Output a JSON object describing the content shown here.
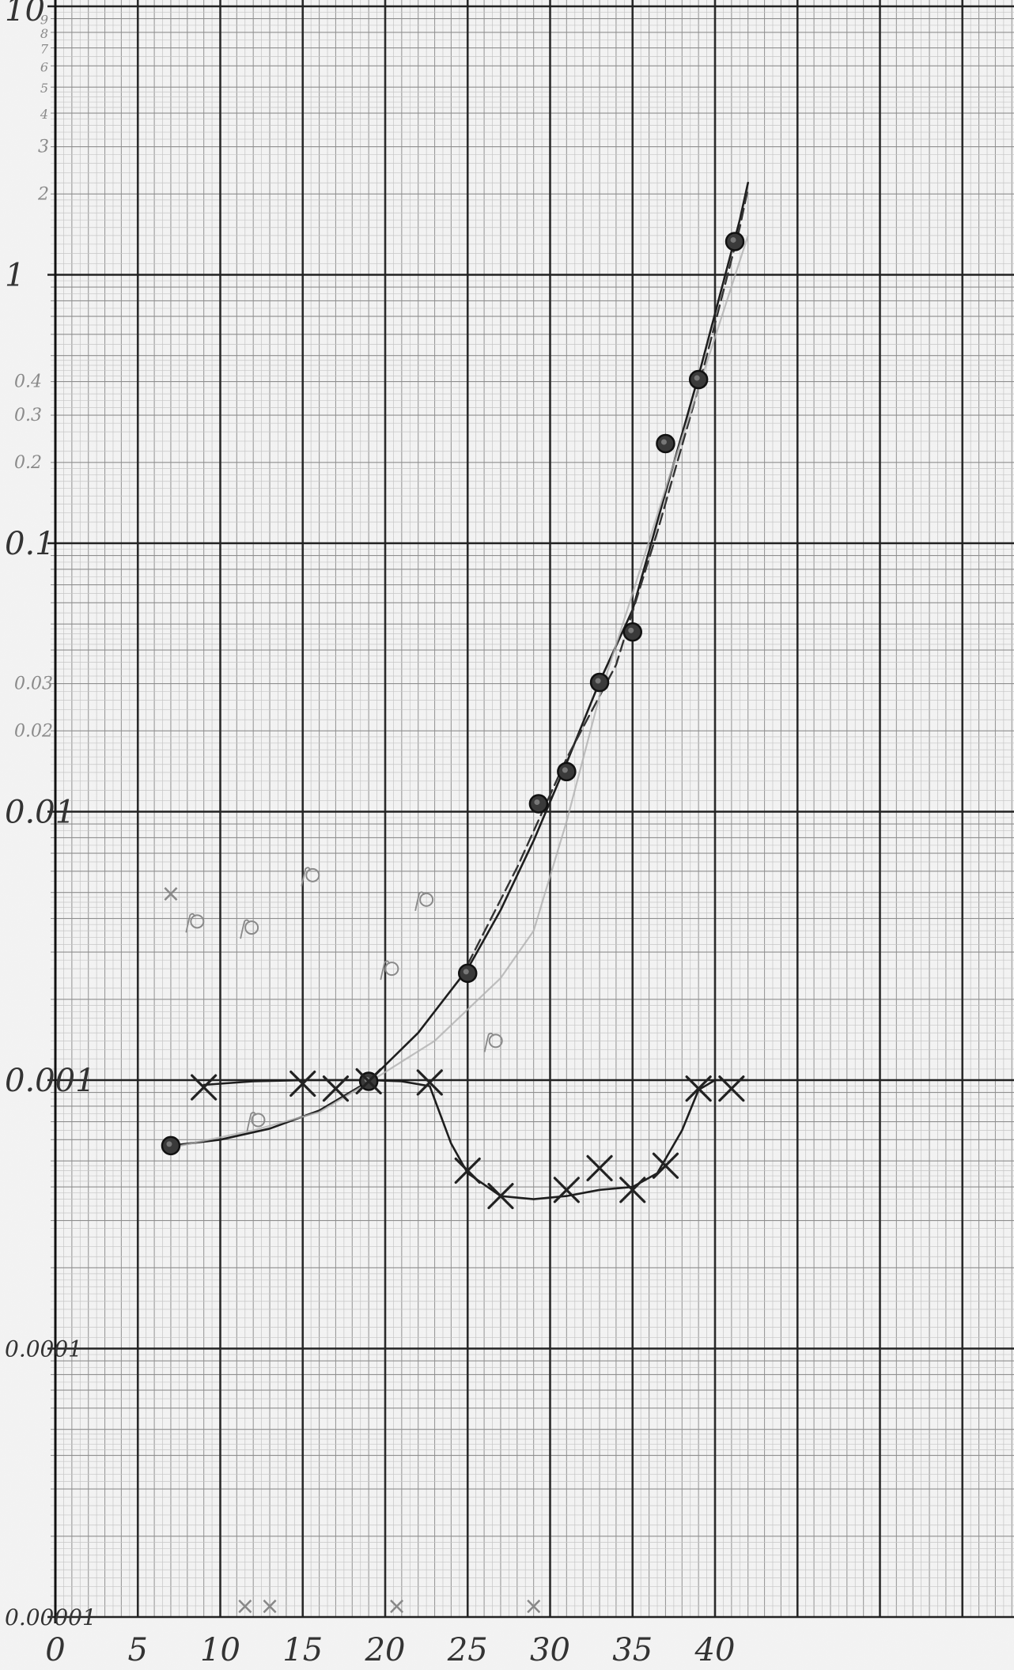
{
  "chart_data": {
    "type": "scatter",
    "title": "",
    "xlabel": "",
    "ylabel": "",
    "x_scale": "linear",
    "y_scale": "log",
    "xlim": [
      0,
      42
    ],
    "ylim": [
      1e-05,
      10
    ],
    "grid": true,
    "x_ticks": [
      {
        "v": 0,
        "label": "0"
      },
      {
        "v": 5,
        "label": "5"
      },
      {
        "v": 10,
        "label": "10"
      },
      {
        "v": 15,
        "label": "15"
      },
      {
        "v": 20,
        "label": "20"
      },
      {
        "v": 25,
        "label": "25"
      },
      {
        "v": 30,
        "label": "30"
      },
      {
        "v": 35,
        "label": "35"
      },
      {
        "v": 40,
        "label": "40"
      }
    ],
    "y_ticks": [
      {
        "v": 1e-05,
        "label": "0.00001"
      },
      {
        "v": 0.0001,
        "label": "0.0001"
      },
      {
        "v": 0.001,
        "label": "0.001"
      },
      {
        "v": 0.01,
        "label": "0.01"
      },
      {
        "v": 0.1,
        "label": "0.1"
      },
      {
        "v": 1,
        "label": "1"
      },
      {
        "v": 10,
        "label": "10"
      }
    ],
    "y_minor_labels": [
      {
        "v": 0.02,
        "label": "0.02"
      },
      {
        "v": 0.03,
        "label": "0.03"
      },
      {
        "v": 0.2,
        "label": "0.2"
      },
      {
        "v": 0.3,
        "label": "0.3"
      },
      {
        "v": 0.4,
        "label": "0.4"
      },
      {
        "v": 2,
        "label": "2"
      },
      {
        "v": 3,
        "label": "3"
      },
      {
        "v": 4,
        "label": "4"
      },
      {
        "v": 5,
        "label": "5"
      },
      {
        "v": 6,
        "label": "6"
      },
      {
        "v": 7,
        "label": "7"
      },
      {
        "v": 8,
        "label": "8"
      },
      {
        "v": 9,
        "label": "9"
      }
    ],
    "series": [
      {
        "marker": "dot",
        "color": "#222222",
        "points": [
          [
            7,
            0.00057
          ],
          [
            19,
            0.00099
          ],
          [
            25,
            0.0025
          ],
          [
            29.3,
            0.0107
          ],
          [
            31,
            0.0141
          ],
          [
            33,
            0.0303
          ],
          [
            35,
            0.0467
          ],
          [
            37,
            0.235
          ],
          [
            39,
            0.407
          ],
          [
            41.2,
            1.33
          ]
        ]
      },
      {
        "marker": "x",
        "color": "#222222",
        "points": [
          [
            9,
            0.00094
          ],
          [
            15,
            0.00097
          ],
          [
            17,
            0.00093
          ],
          [
            19,
            0.00099
          ],
          [
            22.7,
            0.00098
          ],
          [
            25,
            0.00046
          ],
          [
            27,
            0.00037
          ],
          [
            31,
            0.00039
          ],
          [
            33,
            0.00047
          ],
          [
            35,
            0.00039
          ],
          [
            37,
            0.00048
          ],
          [
            39,
            0.00093
          ],
          [
            41,
            0.00093
          ]
        ]
      },
      {
        "marker": "faint-dot",
        "color": "#8a8a8a",
        "points": [
          [
            8.6,
            0.0039
          ],
          [
            11.9,
            0.0037
          ],
          [
            20.4,
            0.0026
          ],
          [
            22.5,
            0.0047
          ],
          [
            15.6,
            0.0058
          ],
          [
            26.7,
            0.0014
          ],
          [
            12.3,
            0.00071
          ]
        ]
      }
    ],
    "curves": [
      {
        "style": "solid",
        "color": "#1e1e1e",
        "points": [
          [
            7,
            0.00057
          ],
          [
            10,
            0.0006
          ],
          [
            13,
            0.00066
          ],
          [
            16,
            0.00077
          ],
          [
            19,
            0.00099
          ],
          [
            22,
            0.0015
          ],
          [
            25,
            0.0026
          ],
          [
            27,
            0.0043
          ],
          [
            29,
            0.0078
          ],
          [
            31,
            0.0152
          ],
          [
            33,
            0.0305
          ],
          [
            35,
            0.0565
          ],
          [
            37,
            0.155
          ],
          [
            39,
            0.42
          ],
          [
            41.5,
            1.6
          ],
          [
            42,
            2.2
          ]
        ]
      },
      {
        "style": "dashed",
        "color": "#333333",
        "points": [
          [
            25,
            0.0027
          ],
          [
            28,
            0.0062
          ],
          [
            31,
            0.0158
          ],
          [
            34,
            0.0352
          ],
          [
            36.5,
            0.11
          ],
          [
            39,
            0.38
          ],
          [
            41.5,
            1.5
          ],
          [
            42,
            2.1
          ]
        ]
      },
      {
        "style": "faint",
        "color": "#b0b0b0",
        "points": [
          [
            7,
            0.00056
          ],
          [
            12,
            0.00065
          ],
          [
            16,
            0.00076
          ],
          [
            19,
            0.00098
          ],
          [
            23,
            0.0014
          ],
          [
            27,
            0.0024
          ],
          [
            29,
            0.0036
          ],
          [
            31,
            0.0092
          ],
          [
            33,
            0.027
          ],
          [
            35,
            0.065
          ],
          [
            37,
            0.16
          ],
          [
            39.5,
            0.47
          ],
          [
            42,
            1.4
          ]
        ]
      },
      {
        "style": "solid",
        "color": "#1e1e1e",
        "points": [
          [
            9,
            0.00096
          ],
          [
            12,
            0.00099
          ],
          [
            15,
            0.001
          ],
          [
            19,
            0.001
          ],
          [
            21,
            0.00099
          ],
          [
            22.7,
            0.00095
          ],
          [
            24,
            0.00058
          ],
          [
            25,
            0.00045
          ],
          [
            27,
            0.00037
          ],
          [
            29,
            0.00036
          ],
          [
            31,
            0.00037
          ],
          [
            33,
            0.00039
          ],
          [
            35,
            0.0004
          ],
          [
            36.5,
            0.00045
          ],
          [
            38,
            0.00065
          ],
          [
            39,
            0.00092
          ],
          [
            40,
            0.001
          ],
          [
            42,
            0.001
          ]
        ]
      }
    ],
    "annotations": [
      {
        "x": 7,
        "y": 0.0045,
        "text": "×"
      },
      {
        "x": 11.5,
        "y": 1e-05,
        "text": "×"
      },
      {
        "x": 13,
        "y": 1e-05,
        "text": "×"
      },
      {
        "x": 20.7,
        "y": 1e-05,
        "text": "×"
      },
      {
        "x": 29,
        "y": 1e-05,
        "text": "×"
      }
    ]
  }
}
